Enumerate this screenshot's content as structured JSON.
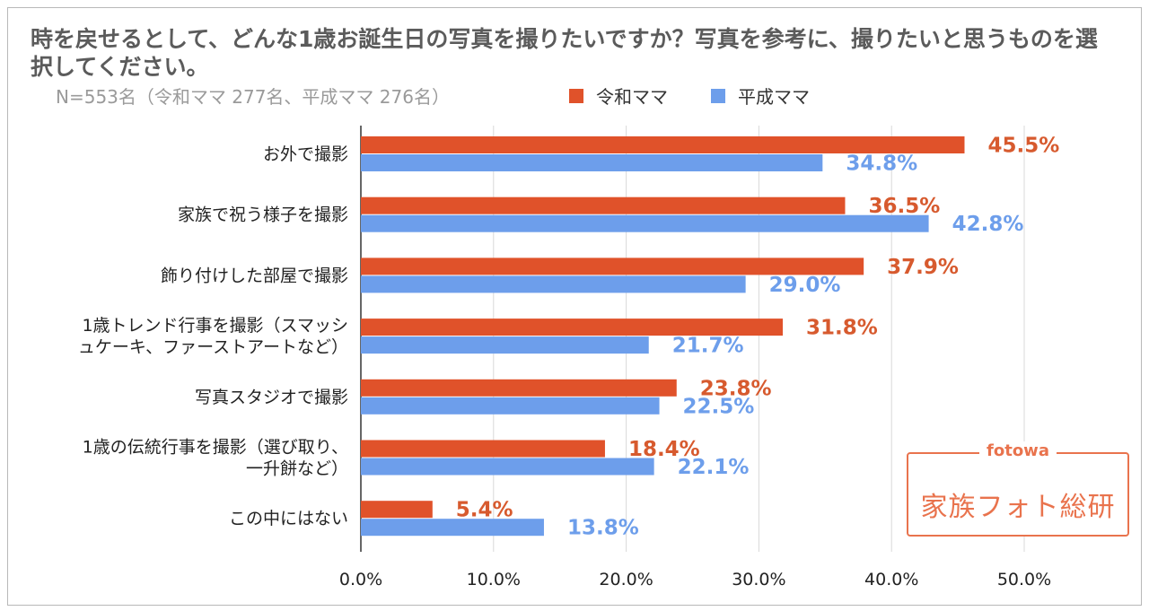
{
  "title": "時を戻せるとして、どんな1歳お誕生日の写真を撮りたいですか？写真を参考に、撮りたいと思うものを選択してください。",
  "subtitle": "N=553名（令和ママ 277名、平成ママ 276名）",
  "colors": {
    "reiwa": "#e0522a",
    "heisei": "#6d9eeb",
    "reiwa_text": "#d75a2e",
    "heisei_text": "#6d9eeb",
    "logo": "#e9734d"
  },
  "logo": {
    "brand": "fotowa",
    "name": "家族フォト総研"
  },
  "chart_data": {
    "type": "bar",
    "orientation": "horizontal",
    "categories": [
      [
        "お外で撮影"
      ],
      [
        "家族で祝う様子を撮影"
      ],
      [
        "飾り付けした部屋で撮影"
      ],
      [
        "1歳トレンド行事を撮影（スマッシ",
        "ュケーキ、ファーストアートなど）"
      ],
      [
        "写真スタジオで撮影"
      ],
      [
        "1歳の伝統行事を撮影（選び取り、",
        "一升餅など）"
      ],
      [
        "この中にはない"
      ]
    ],
    "series": [
      {
        "name": "令和ママ",
        "values": [
          45.5,
          36.5,
          37.9,
          31.8,
          23.8,
          18.4,
          5.4
        ]
      },
      {
        "name": "平成ママ",
        "values": [
          34.8,
          42.8,
          29.0,
          21.7,
          22.5,
          22.1,
          13.8
        ]
      }
    ],
    "value_labels": [
      [
        "45.5%",
        "36.5%",
        "37.9%",
        "31.8%",
        "23.8%",
        "18.4%",
        "5.4%"
      ],
      [
        "34.8%",
        "42.8%",
        "29.0%",
        "21.7%",
        "22.5%",
        "22.1%",
        "13.8%"
      ]
    ],
    "xlim": [
      0,
      50
    ],
    "xticks": [
      "0.0%",
      "10.0%",
      "20.0%",
      "30.0%",
      "40.0%",
      "50.0%"
    ],
    "xtick_values": [
      0,
      10,
      20,
      30,
      40,
      50
    ],
    "grid": true,
    "legend": "top"
  }
}
